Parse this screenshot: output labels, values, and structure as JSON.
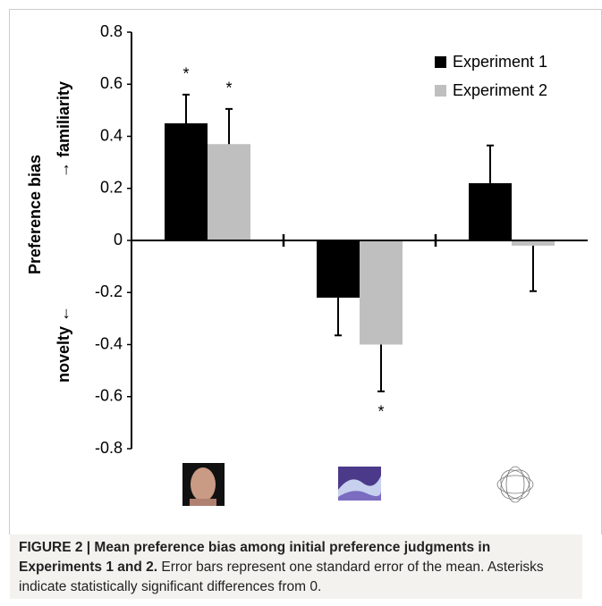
{
  "chart_data": {
    "type": "bar",
    "y_label": "Preference bias",
    "y_label_positive": "→ familiarity",
    "y_label_negative": "novelty ←",
    "categories": [
      null,
      null,
      null
    ],
    "series": [
      {
        "name": "Experiment 1",
        "color": "#000000",
        "values": [
          0.45,
          -0.22,
          0.22
        ],
        "errors": [
          0.11,
          0.145,
          0.145
        ],
        "significance": [
          "*",
          null,
          null
        ]
      },
      {
        "name": "Experiment 2",
        "color": "#bfbfbf",
        "values": [
          0.37,
          -0.4,
          -0.02
        ],
        "errors": [
          0.135,
          0.18,
          0.175
        ],
        "significance": [
          "*",
          "*",
          null
        ]
      }
    ],
    "ylim": [
      -0.8,
      0.8
    ],
    "yticks": [
      {
        "value": 0.8,
        "label": "0.8"
      },
      {
        "value": 0.6,
        "label": "0.6"
      },
      {
        "value": 0.4,
        "label": "0.4"
      },
      {
        "value": 0.2,
        "label": "0.2"
      },
      0,
      {
        "value": -0.2,
        "label": "-0.2"
      },
      {
        "value": -0.4,
        "label": "-0.4"
      },
      {
        "value": -0.6,
        "label": "-0.6"
      },
      {
        "value": -0.8,
        "label": "-0.8"
      }
    ],
    "legend": "top-right"
  },
  "caption": {
    "label": "FIGURE 2 | Mean preference bias among initial preference judgments in Experiments 1 and 2.",
    "text": "Error bars represent one standard error of the mean. Asterisks indicate statistically significant differences from 0."
  }
}
